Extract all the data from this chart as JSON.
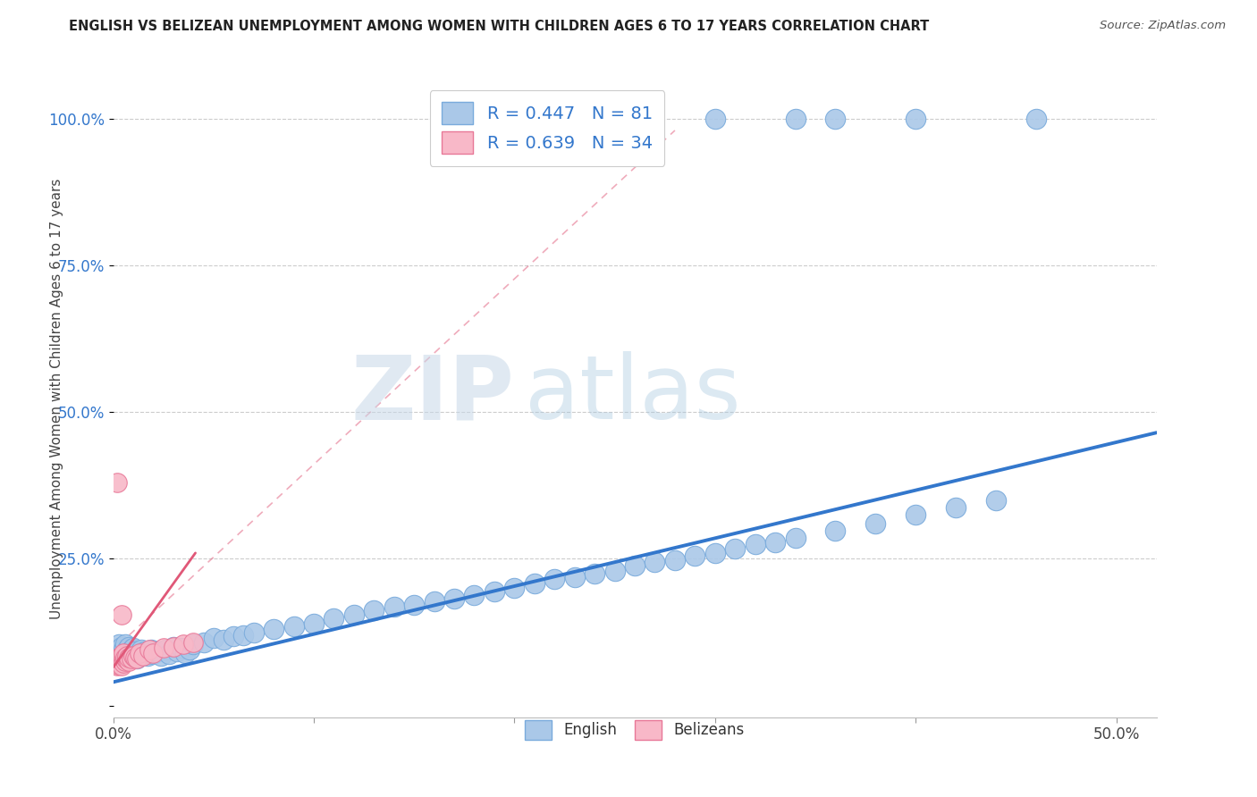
{
  "title": "ENGLISH VS BELIZEAN UNEMPLOYMENT AMONG WOMEN WITH CHILDREN AGES 6 TO 17 YEARS CORRELATION CHART",
  "source": "Source: ZipAtlas.com",
  "ylabel": "Unemployment Among Women with Children Ages 6 to 17 years",
  "xlim": [
    0.0,
    0.52
  ],
  "ylim": [
    -0.02,
    1.08
  ],
  "legend_R_english": "R = 0.447",
  "legend_N_english": "N = 81",
  "legend_R_belizean": "R = 0.639",
  "legend_N_belizean": "N = 34",
  "english_color": "#aac8e8",
  "english_edge": "#7aabdc",
  "belizean_color": "#f8b8c8",
  "belizean_edge": "#e87898",
  "trend_english_color": "#3377cc",
  "trend_belizean_color": "#e05878",
  "watermark_zip": "ZIP",
  "watermark_atlas": "atlas",
  "background_color": "#ffffff",
  "grid_color": "#cccccc",
  "ytick_color": "#3377cc",
  "english_x": [
    0.002,
    0.003,
    0.003,
    0.004,
    0.004,
    0.005,
    0.005,
    0.006,
    0.006,
    0.007,
    0.007,
    0.008,
    0.008,
    0.009,
    0.009,
    0.01,
    0.01,
    0.011,
    0.011,
    0.012,
    0.013,
    0.014,
    0.015,
    0.016,
    0.017,
    0.018,
    0.019,
    0.02,
    0.022,
    0.024,
    0.026,
    0.028,
    0.03,
    0.032,
    0.034,
    0.036,
    0.038,
    0.04,
    0.045,
    0.05,
    0.055,
    0.06,
    0.065,
    0.07,
    0.08,
    0.09,
    0.1,
    0.11,
    0.12,
    0.13,
    0.14,
    0.15,
    0.16,
    0.17,
    0.18,
    0.19,
    0.2,
    0.21,
    0.22,
    0.23,
    0.24,
    0.25,
    0.26,
    0.27,
    0.28,
    0.29,
    0.3,
    0.31,
    0.32,
    0.33,
    0.34,
    0.36,
    0.38,
    0.4,
    0.42,
    0.44,
    0.3,
    0.34,
    0.36,
    0.4,
    0.46
  ],
  "english_y": [
    0.095,
    0.09,
    0.105,
    0.095,
    0.1,
    0.085,
    0.095,
    0.09,
    0.105,
    0.088,
    0.095,
    0.085,
    0.1,
    0.09,
    0.095,
    0.085,
    0.098,
    0.088,
    0.092,
    0.08,
    0.09,
    0.095,
    0.088,
    0.092,
    0.085,
    0.09,
    0.095,
    0.088,
    0.092,
    0.085,
    0.095,
    0.088,
    0.1,
    0.092,
    0.098,
    0.09,
    0.095,
    0.105,
    0.108,
    0.115,
    0.112,
    0.118,
    0.12,
    0.125,
    0.13,
    0.135,
    0.14,
    0.148,
    0.155,
    0.162,
    0.168,
    0.172,
    0.178,
    0.182,
    0.188,
    0.195,
    0.2,
    0.208,
    0.215,
    0.218,
    0.225,
    0.23,
    0.238,
    0.245,
    0.248,
    0.255,
    0.26,
    0.268,
    0.275,
    0.278,
    0.285,
    0.298,
    0.31,
    0.325,
    0.338,
    0.35,
    1.0,
    1.0,
    1.0,
    1.0,
    1.0
  ],
  "belizean_x": [
    0.001,
    0.001,
    0.002,
    0.002,
    0.002,
    0.003,
    0.003,
    0.003,
    0.004,
    0.004,
    0.004,
    0.005,
    0.005,
    0.005,
    0.006,
    0.006,
    0.007,
    0.007,
    0.008,
    0.008,
    0.009,
    0.01,
    0.011,
    0.012,
    0.013,
    0.015,
    0.018,
    0.02,
    0.025,
    0.03,
    0.035,
    0.04,
    0.002,
    0.004
  ],
  "belizean_y": [
    0.07,
    0.075,
    0.068,
    0.08,
    0.072,
    0.075,
    0.082,
    0.07,
    0.078,
    0.085,
    0.068,
    0.08,
    0.072,
    0.09,
    0.075,
    0.082,
    0.078,
    0.085,
    0.075,
    0.082,
    0.08,
    0.085,
    0.082,
    0.08,
    0.09,
    0.085,
    0.095,
    0.09,
    0.098,
    0.1,
    0.105,
    0.108,
    0.38,
    0.155
  ],
  "eng_trend_x0": 0.0,
  "eng_trend_x1": 0.52,
  "eng_trend_y0": 0.04,
  "eng_trend_y1": 0.465,
  "bel_trend_x0": 0.0,
  "bel_trend_x1": 0.041,
  "bel_trend_y0": 0.065,
  "bel_trend_y1": 0.26
}
